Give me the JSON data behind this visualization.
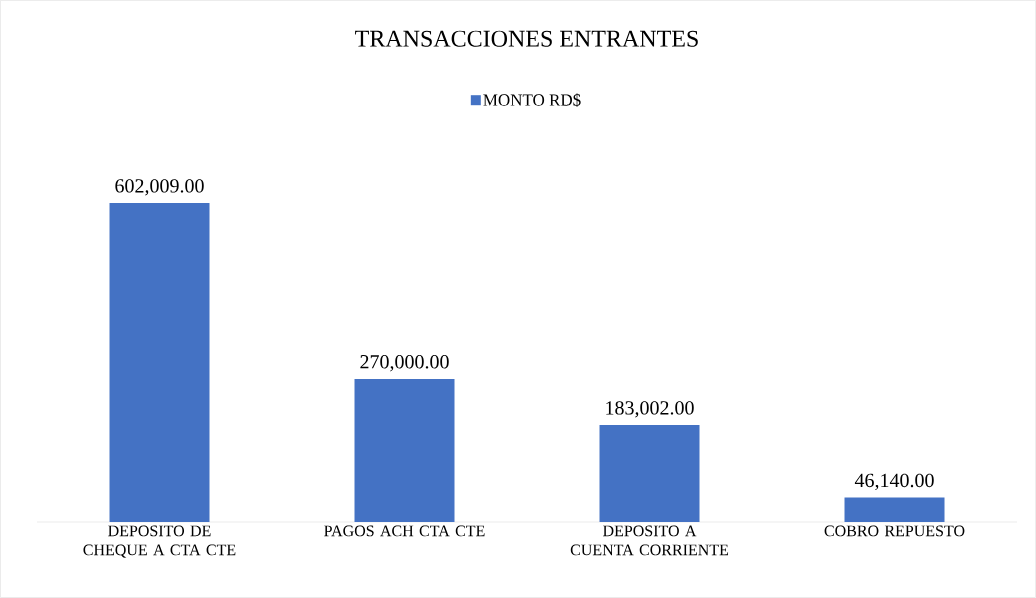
{
  "chart_data": {
    "type": "bar",
    "title": "TRANSACCIONES ENTRANTES",
    "categories": [
      "DEPOSITO DE CHEQUE A CTA CTE",
      "PAGOS ACH CTA CTE",
      "DEPOSITO A CUENTA CORRIENTE",
      "COBRO REPUESTO"
    ],
    "series": [
      {
        "name": "MONTO RD$",
        "color": "#4472c4",
        "values": [
          602009,
          270000,
          183002,
          46140
        ],
        "value_labels": [
          "602,009.00",
          "270,000.00",
          "183,002.00",
          "46,140.00"
        ]
      }
    ],
    "tick_labels": "x",
    "legend": "top"
  }
}
